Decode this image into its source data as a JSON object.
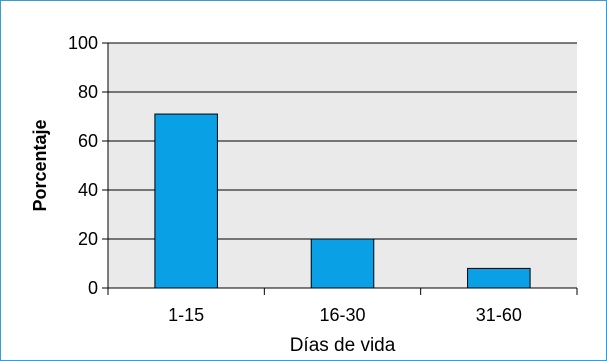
{
  "chart_data": {
    "type": "bar",
    "categories": [
      "1-15",
      "16-30",
      "31-60"
    ],
    "values": [
      71,
      20,
      8
    ],
    "title": "",
    "xlabel": "Días de vida",
    "ylabel": "Porcentaje",
    "ylim": [
      0,
      100
    ],
    "yticks": [
      "0",
      "20",
      "40",
      "60",
      "80",
      "100"
    ],
    "grid": true,
    "legend": "none",
    "colors": {
      "bar_fill": "#0aa0e6",
      "bar_stroke": "#000000",
      "plot_bg": "#eaeaea",
      "frame_border": "#3a9bd5"
    }
  }
}
